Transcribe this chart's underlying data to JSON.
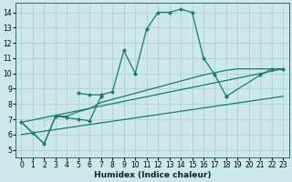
{
  "xlabel": "Humidex (Indice chaleur)",
  "xlim": [
    -0.5,
    23.5
  ],
  "ylim": [
    4.5,
    14.6
  ],
  "yticks": [
    5,
    6,
    7,
    8,
    9,
    10,
    11,
    12,
    13,
    14
  ],
  "xticks": [
    0,
    1,
    2,
    3,
    4,
    5,
    6,
    7,
    8,
    9,
    10,
    11,
    12,
    13,
    14,
    15,
    16,
    17,
    18,
    19,
    20,
    21,
    22,
    23
  ],
  "bg_color": "#cce8e8",
  "grid_color": "#aacccc",
  "line_color": "#1a7a6e",
  "lw": 0.9,
  "markersize": 2.5,
  "segments": [
    {
      "x": [
        0,
        1,
        2,
        3,
        4,
        5,
        6,
        7
      ],
      "y": [
        6.8,
        6.1,
        5.4,
        7.2,
        7.1,
        7.0,
        6.9,
        8.5
      ],
      "marker": true
    },
    {
      "x": [
        5,
        6,
        7,
        8,
        9,
        10,
        11,
        12,
        13,
        14,
        15,
        16,
        17,
        18
      ],
      "y": [
        8.7,
        8.6,
        8.6,
        8.8,
        11.5,
        10.0,
        12.9,
        14.0,
        14.0,
        14.2,
        14.0,
        11.0,
        9.9,
        8.5
      ],
      "marker": true
    },
    {
      "x": [
        18,
        21,
        22,
        23
      ],
      "y": [
        8.5,
        9.9,
        10.3,
        10.3
      ],
      "marker": true
    },
    {
      "x": [
        0,
        2,
        3,
        4,
        5,
        6,
        7,
        8,
        9,
        10,
        11,
        12,
        14,
        15,
        16,
        18,
        19,
        20,
        21,
        22,
        23
      ],
      "y": [
        6.8,
        5.4,
        7.2,
        7.2,
        7.5,
        7.7,
        8.1,
        8.3,
        8.5,
        8.7,
        8.9,
        9.1,
        9.5,
        9.7,
        9.9,
        10.2,
        10.3,
        10.3,
        10.3,
        10.3,
        10.3
      ],
      "marker": false
    },
    {
      "x": [
        0,
        23
      ],
      "y": [
        6.0,
        8.5
      ],
      "marker": false
    },
    {
      "x": [
        0,
        23
      ],
      "y": [
        6.8,
        10.3
      ],
      "marker": false
    }
  ]
}
